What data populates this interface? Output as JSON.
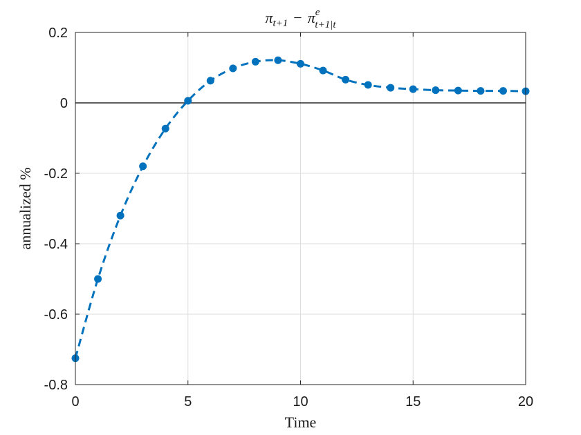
{
  "chart_data": {
    "type": "line",
    "title": "π_{t+1} − π^e_{t+1|t}",
    "title_parts": {
      "left": "π",
      "left_sub": "t+1",
      "minus": "−",
      "right": "π",
      "right_sup": "e",
      "right_sub": "t+1|t"
    },
    "xlabel": "Time",
    "ylabel": "annualized %",
    "xlim": [
      0,
      20
    ],
    "ylim": [
      -0.8,
      0.2
    ],
    "xticks": [
      0,
      5,
      10,
      15,
      20
    ],
    "xtick_labels": [
      "0",
      "5",
      "10",
      "15",
      "20"
    ],
    "yticks": [
      -0.8,
      -0.6,
      -0.4,
      -0.2,
      0,
      0.2
    ],
    "ytick_labels": [
      "-0.8",
      "-0.6",
      "-0.4",
      "-0.2",
      "0",
      "0.2"
    ],
    "grid": true,
    "zero_line": true,
    "line_color": "#0072BD",
    "series": [
      {
        "x": [
          0,
          1,
          2,
          3,
          4,
          5,
          6,
          7,
          8,
          9,
          10,
          11,
          12,
          13,
          14,
          15,
          16,
          17,
          18,
          19,
          20
        ],
        "values": [
          -0.725,
          -0.5,
          -0.32,
          -0.18,
          -0.073,
          0.006,
          0.063,
          0.098,
          0.117,
          0.121,
          0.111,
          0.092,
          0.066,
          0.051,
          0.043,
          0.039,
          0.036,
          0.035,
          0.034,
          0.034,
          0.033
        ]
      }
    ]
  }
}
